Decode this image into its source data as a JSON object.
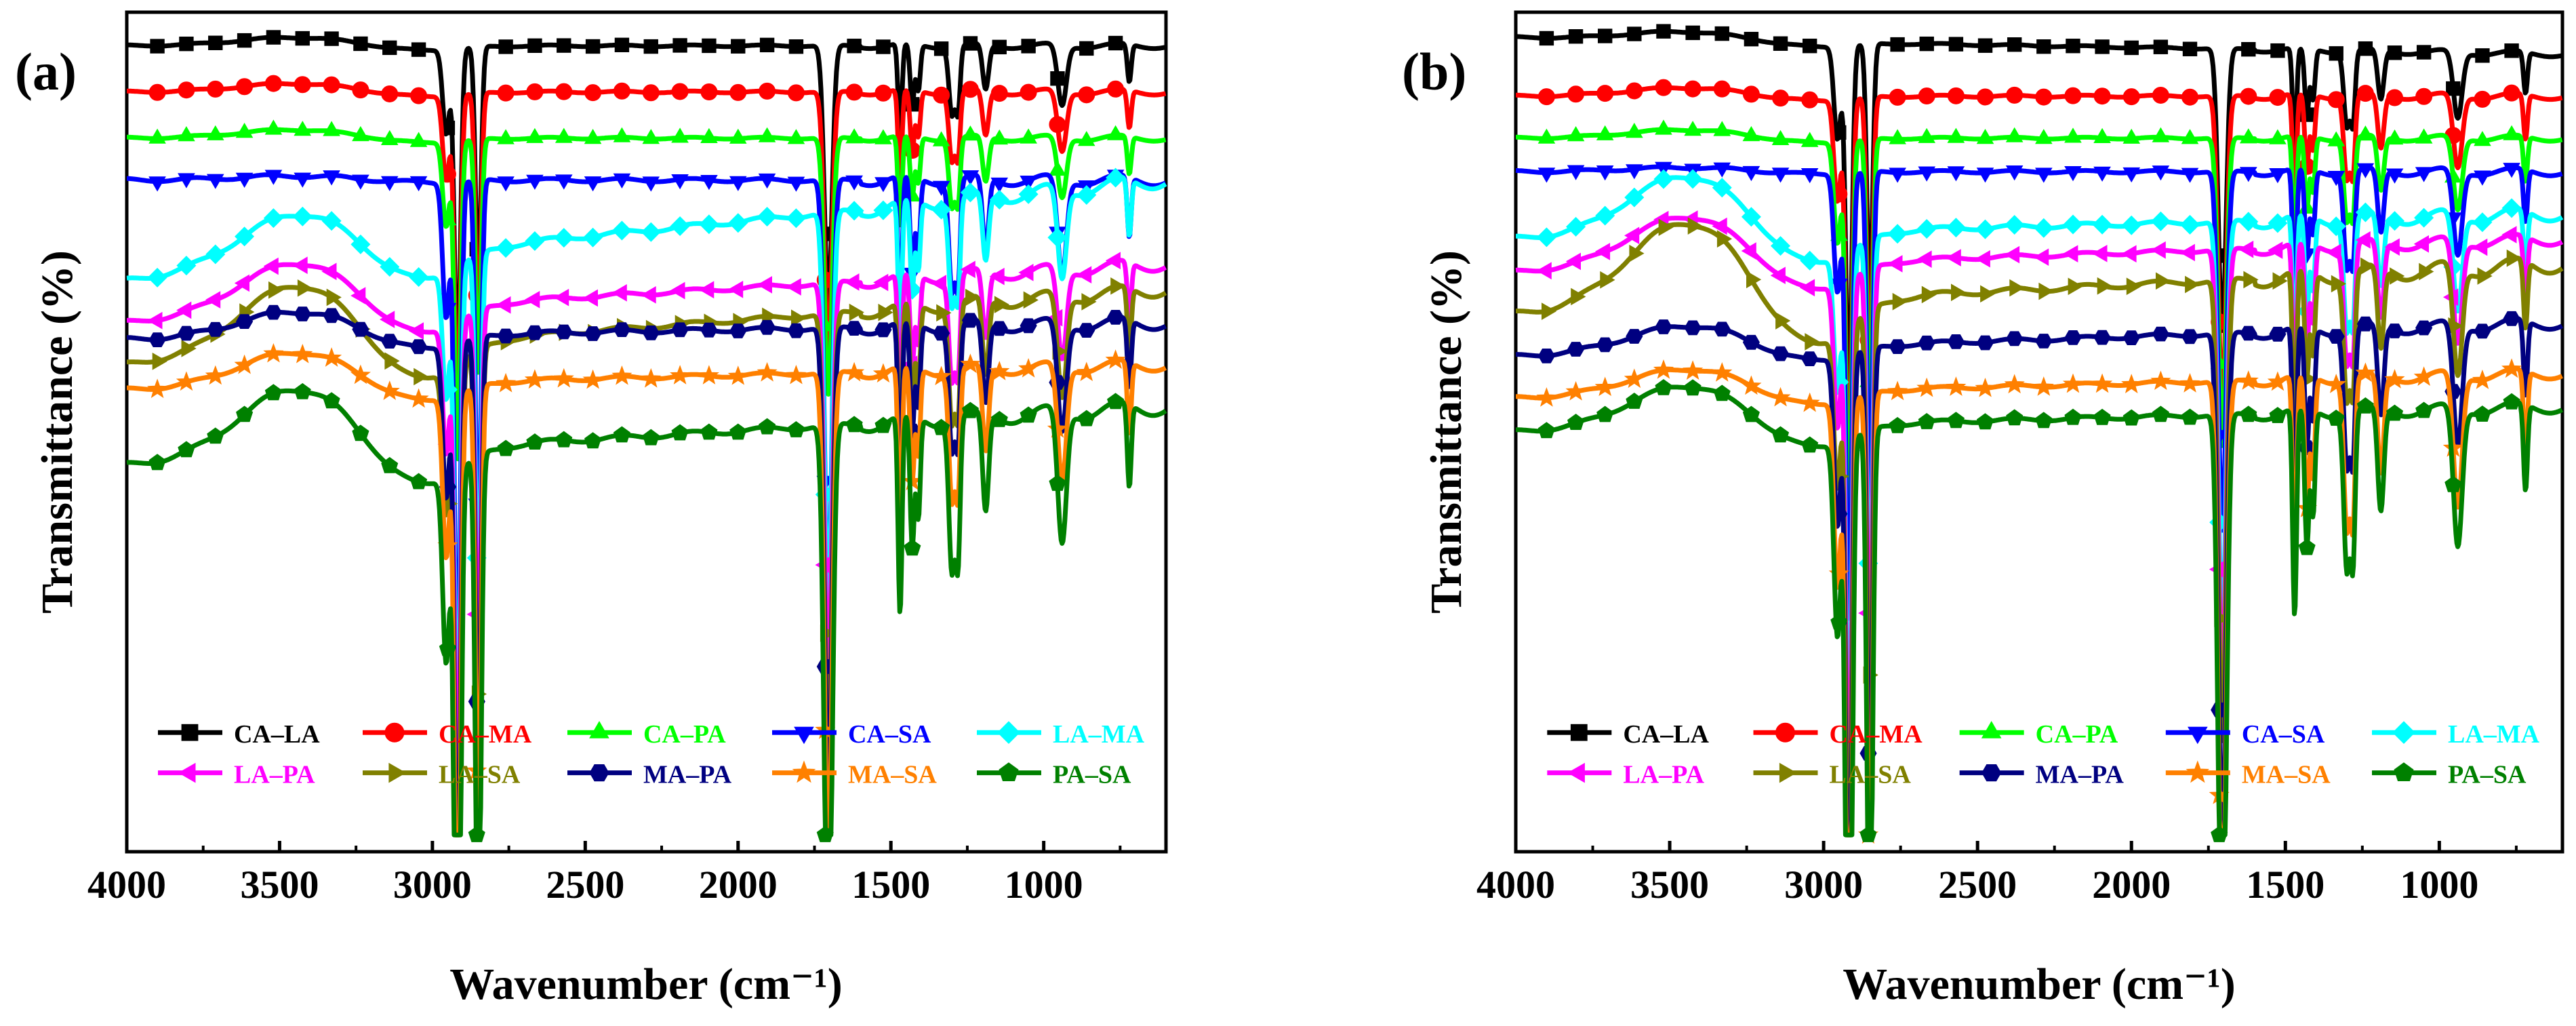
{
  "figure": {
    "colors": {
      "CA–LA": "#000000",
      "CA–MA": "#ff0000",
      "CA–PA": "#00ff00",
      "CA–SA": "#0000ff",
      "LA–MA": "#00ffff",
      "LA–PA": "#ff00ff",
      "LA–SA": "#808000",
      "MA–PA": "#000080",
      "MA–SA": "#ff8000",
      "PA–SA": "#008000"
    },
    "markers": {
      "CA–LA": "square",
      "CA–MA": "circle",
      "CA–PA": "triangle-up",
      "CA–SA": "triangle-down",
      "LA–MA": "diamond",
      "LA–PA": "triangle-left",
      "LA–SA": "triangle-right",
      "MA–PA": "hexagon",
      "MA–SA": "star",
      "PA–SA": "pentagon"
    }
  },
  "chart_data": [
    {
      "type": "line",
      "panel_label": "(a)",
      "xlabel": "Wavenumber (cm⁻¹)",
      "ylabel": "Transmittance (%)",
      "xlim": [
        4000,
        600
      ],
      "ylim": [
        0,
        100
      ],
      "xticks": [
        4000,
        3500,
        3000,
        2500,
        2000,
        1500,
        1000
      ],
      "legend": {
        "placement": "bottom",
        "rows": 2,
        "entries": [
          "CA–LA",
          "CA–MA",
          "CA–PA",
          "CA–SA",
          "LA–MA",
          "LA–PA",
          "LA–SA",
          "MA–PA",
          "MA–SA",
          "PA–SA"
        ]
      },
      "series": [
        {
          "name": "CA–LA",
          "base": 96,
          "slope": 0,
          "bump": 1,
          "scale": 0.55,
          "dipscale": 1.0
        },
        {
          "name": "CA–MA",
          "base": 90.5,
          "slope": 0,
          "bump": 1,
          "scale": 0.6,
          "dipscale": 1.0
        },
        {
          "name": "CA–PA",
          "base": 85,
          "slope": 0,
          "bump": 1,
          "scale": 0.6,
          "dipscale": 1.0
        },
        {
          "name": "CA–SA",
          "base": 80,
          "slope": 0,
          "bump": 0.5,
          "scale": 1.1,
          "dipscale": 1.6
        },
        {
          "name": "LA–MA",
          "base": 80,
          "slope": -12,
          "bump": 6,
          "scale": 1.5,
          "dipscale": 1.5
        },
        {
          "name": "LA–PA",
          "base": 70,
          "slope": -7,
          "bump": 6,
          "scale": 1.3,
          "dipscale": 1.5
        },
        {
          "name": "LA–SA",
          "base": 67,
          "slope": -9,
          "bump": 8,
          "scale": 1.4,
          "dipscale": 1.7
        },
        {
          "name": "MA–PA",
          "base": 63,
          "slope": -2,
          "bump": 3,
          "scale": 1.3,
          "dipscale": 1.8
        },
        {
          "name": "MA–SA",
          "base": 58,
          "slope": -3,
          "bump": 4,
          "scale": 1.2,
          "dipscale": 1.9
        },
        {
          "name": "PA–SA",
          "base": 53,
          "slope": -7,
          "bump": 8,
          "scale": 1.6,
          "dipscale": 2.2
        }
      ]
    },
    {
      "type": "line",
      "panel_label": "(b)",
      "xlabel": "Wavenumber (cm⁻¹)",
      "ylabel": "Transmittance (%)",
      "xlim": [
        4000,
        600
      ],
      "ylim": [
        0,
        100
      ],
      "xticks": [
        4000,
        3500,
        3000,
        2500,
        2000,
        1500,
        1000
      ],
      "legend": {
        "placement": "bottom",
        "rows": 2,
        "entries": [
          "CA–LA",
          "CA–MA",
          "CA–PA",
          "CA–SA",
          "LA–MA",
          "LA–PA",
          "LA–SA",
          "MA–PA",
          "MA–SA",
          "PA–SA"
        ]
      },
      "series": [
        {
          "name": "CA–LA",
          "base": 95,
          "slope": 2,
          "bump": 1,
          "scale": 0.55,
          "dipscale": 1.1
        },
        {
          "name": "CA–MA",
          "base": 90,
          "slope": 0,
          "bump": 1,
          "scale": 0.65,
          "dipscale": 1.2
        },
        {
          "name": "CA–PA",
          "base": 85,
          "slope": 0,
          "bump": 1,
          "scale": 0.6,
          "dipscale": 1.2
        },
        {
          "name": "CA–SA",
          "base": 81,
          "slope": 0,
          "bump": 0.5,
          "scale": 0.8,
          "dipscale": 1.4
        },
        {
          "name": "LA–MA",
          "base": 76,
          "slope": -3,
          "bump": 7,
          "scale": 1.4,
          "dipscale": 1.6
        },
        {
          "name": "LA–PA",
          "base": 73,
          "slope": -4,
          "bump": 6,
          "scale": 1.2,
          "dipscale": 1.7
        },
        {
          "name": "LA–SA",
          "base": 70,
          "slope": -6,
          "bump": 10,
          "scale": 1.7,
          "dipscale": 1.8
        },
        {
          "name": "MA–PA",
          "base": 63,
          "slope": -4,
          "bump": 3,
          "scale": 1.2,
          "dipscale": 2.0
        },
        {
          "name": "MA–SA",
          "base": 57,
          "slope": -3,
          "bump": 3,
          "scale": 1.1,
          "dipscale": 2.2
        },
        {
          "name": "PA–SA",
          "base": 53,
          "slope": -3,
          "bump": 5,
          "scale": 1.2,
          "dipscale": 2.3
        }
      ]
    }
  ]
}
